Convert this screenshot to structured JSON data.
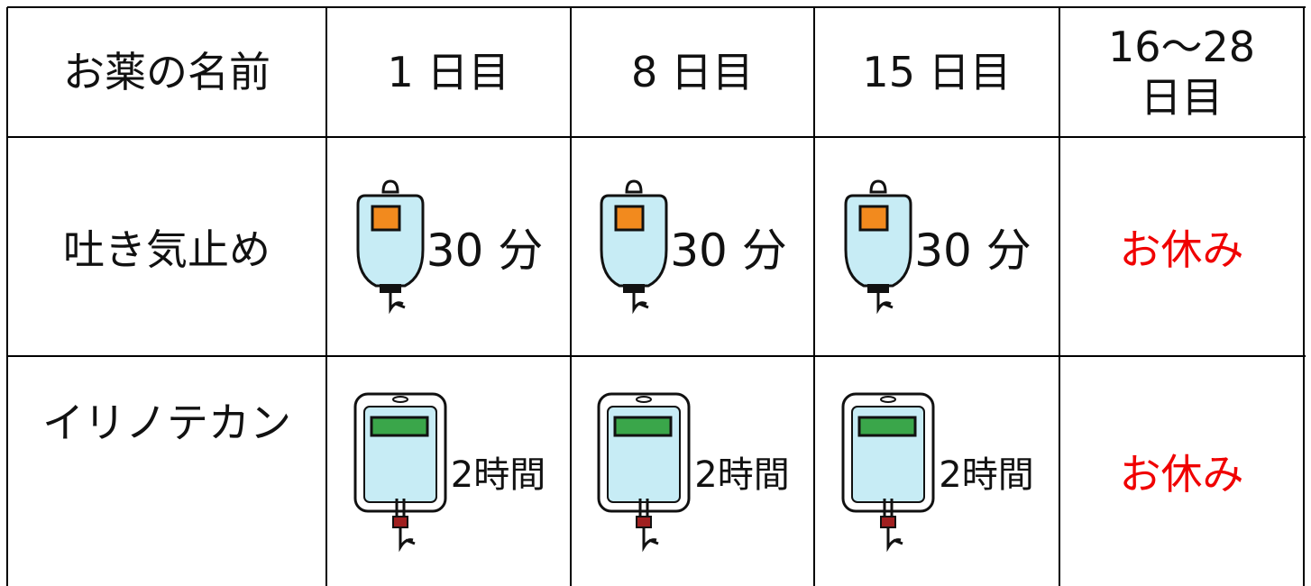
{
  "table": {
    "header": [
      "お薬の名前",
      "1 日目",
      "8 日目",
      "15 日目",
      "16～28\n日目"
    ],
    "rows": [
      {
        "name": "吐き気止め",
        "cells": [
          "30 分",
          "30 分",
          "30 分",
          "お休み"
        ]
      },
      {
        "name": "イリノテカン",
        "cells": [
          "2時間",
          "2時間",
          "2時間",
          "お休み"
        ]
      }
    ]
  }
}
